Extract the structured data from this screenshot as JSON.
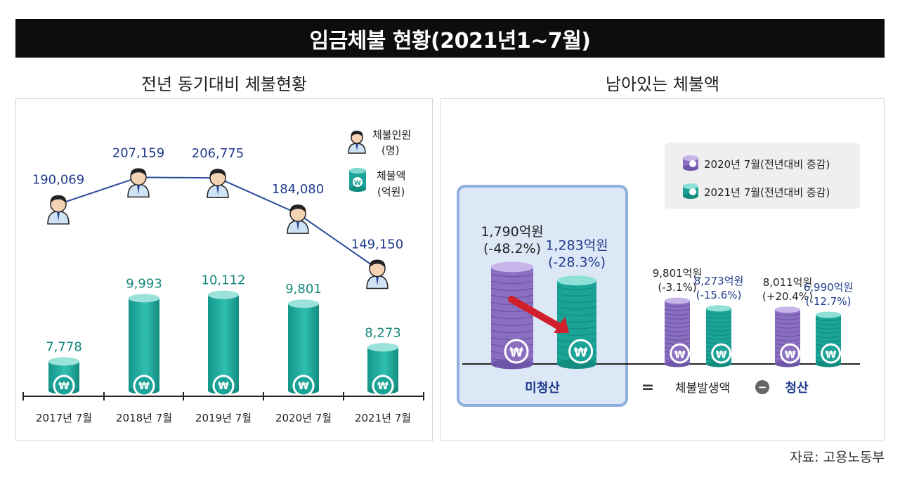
{
  "header": {
    "title": "임금체불 현황(2021년1∼7월)"
  },
  "left": {
    "title": "전년 동기대비 체불현황",
    "legend": {
      "workers_line1": "체불인원",
      "workers_line2": "(명)",
      "amount_line1": "체불액",
      "amount_line2": "(억원)"
    }
  },
  "right": {
    "title": "남아있는 체불액",
    "legend": {
      "y2020": "2020년 7월(전년대비 증감)",
      "y2021": "2021년 7월(전년대비 증감)"
    },
    "labels": {
      "unpaid": "미청산",
      "equals": "=",
      "occurred": "체불발생액",
      "minus": "−",
      "settled": "청산"
    }
  },
  "source": "자료: 고용노동부",
  "colors": {
    "teal": "#1aa396",
    "purple": "#8a6fc0",
    "navy_text": "#1f3a8a",
    "line": "#2b4a9a",
    "highlight_border": "#8fb0dc",
    "highlight_fill": "#dde8f7",
    "arrow": "#d1202b"
  },
  "chart_data": [
    {
      "type": "bar",
      "title": "전년 동기대비 체불현황",
      "categories": [
        "2017년 7월",
        "2018년 7월",
        "2019년 7월",
        "2020년 7월",
        "2021년 7월"
      ],
      "series": [
        {
          "name": "체불액 (억원)",
          "type": "bar",
          "values": [
            7778,
            9993,
            10112,
            9801,
            8273
          ],
          "labels": [
            "7,778",
            "9,993",
            "10,112",
            "9,801",
            "8,273"
          ]
        },
        {
          "name": "체불인원 (명)",
          "type": "line",
          "values": [
            190069,
            207159,
            206775,
            184080,
            149150
          ],
          "labels": [
            "190,069",
            "207,159",
            "206,775",
            "184,080",
            "149,150"
          ]
        }
      ]
    },
    {
      "type": "bar",
      "title": "남아있는 체불액",
      "groups": [
        {
          "name": "미청산",
          "y2020": {
            "value": 1790,
            "label": "1,790억원",
            "change": "(-48.2%)"
          },
          "y2021": {
            "value": 1283,
            "label": "1,283억원",
            "change": "(-28.3%)"
          }
        },
        {
          "name": "체불발생액",
          "y2020": {
            "value": 9801,
            "label": "9,801억원",
            "change": "(-3.1%)"
          },
          "y2021": {
            "value": 8273,
            "label": "8,273억원",
            "change": "(-15.6%)"
          }
        },
        {
          "name": "청산",
          "y2020": {
            "value": 8011,
            "label": "8,011억원",
            "change": "(+20.4%)"
          },
          "y2021": {
            "value": 6990,
            "label": "6,990억원",
            "change": "(-12.7%)"
          }
        }
      ]
    }
  ]
}
